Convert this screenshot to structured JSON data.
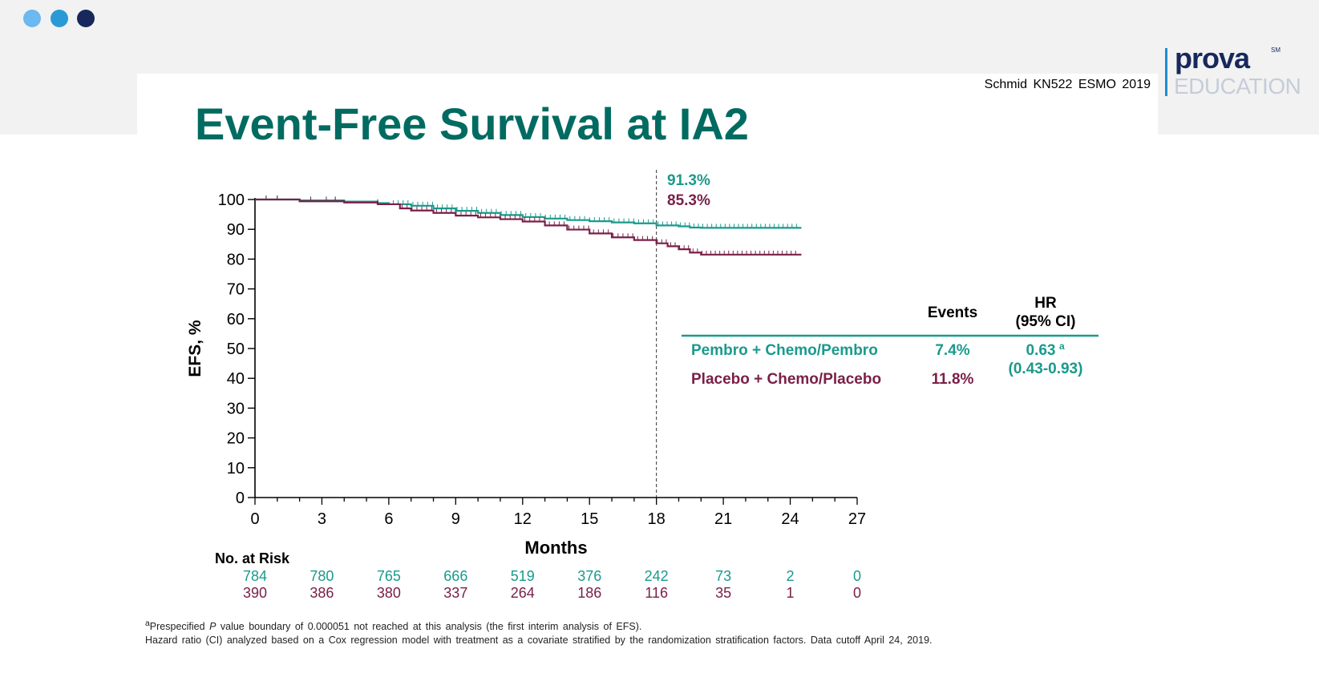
{
  "header": {
    "citation": "Schmid KN522 ESMO 2019",
    "logo_top": "prova",
    "logo_sm": "SM",
    "logo_bottom": "EDUCATION"
  },
  "slide": {
    "title": "Event-Free Survival at IA2"
  },
  "colors": {
    "teal": "#1a9a8c",
    "maroon": "#7a2048",
    "title": "#006b61",
    "dot_light": "#6cb8f0",
    "dot_mid": "#2a9ad6",
    "dot_dark": "#17285c"
  },
  "chart_data": {
    "type": "line",
    "step": true,
    "ylabel": "EFS, %",
    "xlabel": "Months",
    "x_ticks": [
      0,
      3,
      6,
      9,
      12,
      15,
      18,
      21,
      24,
      27
    ],
    "y_ticks": [
      0,
      10,
      20,
      30,
      40,
      50,
      60,
      70,
      80,
      90,
      100
    ],
    "xlim": [
      0,
      27
    ],
    "ylim": [
      0,
      100
    ],
    "reference_line_x": 18,
    "annotations": [
      {
        "text": "91.3%",
        "series": "Pembro + Chemo/Pembro"
      },
      {
        "text": "85.3%",
        "series": "Placebo + Chemo/Placebo"
      }
    ],
    "series": [
      {
        "name": "Pembro + Chemo/Pembro",
        "color": "#1a9a8c",
        "points": [
          [
            0,
            100
          ],
          [
            2,
            99.7
          ],
          [
            4,
            99.3
          ],
          [
            5.5,
            98.8
          ],
          [
            6,
            98.4
          ],
          [
            7,
            97.9
          ],
          [
            8,
            97.0
          ],
          [
            9,
            96.2
          ],
          [
            10,
            95.5
          ],
          [
            11,
            94.8
          ],
          [
            12,
            94.1
          ],
          [
            13,
            93.6
          ],
          [
            14,
            93.1
          ],
          [
            15,
            92.7
          ],
          [
            16,
            92.3
          ],
          [
            17,
            92.0
          ],
          [
            18,
            91.3
          ],
          [
            19,
            91.0
          ],
          [
            19.5,
            90.6
          ],
          [
            20,
            90.5
          ],
          [
            24.5,
            90.5
          ]
        ]
      },
      {
        "name": "Placebo + Chemo/Placebo",
        "color": "#7a2048",
        "points": [
          [
            0,
            100
          ],
          [
            2,
            99.4
          ],
          [
            4,
            99.0
          ],
          [
            5.5,
            98.4
          ],
          [
            6.5,
            97.0
          ],
          [
            7,
            96.3
          ],
          [
            8,
            95.5
          ],
          [
            9,
            94.6
          ],
          [
            10,
            94.0
          ],
          [
            11,
            93.4
          ],
          [
            12,
            92.6
          ],
          [
            13,
            91.3
          ],
          [
            14,
            89.9
          ],
          [
            15,
            88.6
          ],
          [
            16,
            87.3
          ],
          [
            17,
            86.4
          ],
          [
            18,
            85.3
          ],
          [
            18.5,
            84.3
          ],
          [
            19,
            83.3
          ],
          [
            19.5,
            82.2
          ],
          [
            20,
            81.5
          ],
          [
            24.5,
            81.5
          ]
        ]
      }
    ],
    "risk_table": {
      "title": "No. at Risk",
      "rows": [
        {
          "series": "Pembro + Chemo/Pembro",
          "values": [
            "784",
            "780",
            "765",
            "666",
            "519",
            "376",
            "242",
            "73",
            "2",
            "0"
          ]
        },
        {
          "series": "Placebo + Chemo/Placebo",
          "values": [
            "390",
            "386",
            "380",
            "337",
            "264",
            "186",
            "116",
            "35",
            "1",
            "0"
          ]
        }
      ]
    },
    "legend_table": {
      "headers": {
        "events": "Events",
        "hr_line1": "HR",
        "hr_line2": "(95% CI)"
      },
      "rows": [
        {
          "label": "Pembro + Chemo/Pembro",
          "events": "7.4%"
        },
        {
          "label": "Placebo + Chemo/Placebo",
          "events": "11.8%"
        }
      ],
      "hr_value": "0.63",
      "hr_superscript": "a",
      "hr_ci": "(0.43-0.93)"
    }
  },
  "footnotes": {
    "line1_sup": "a",
    "line1_pre": "Prespecified ",
    "line1_p": "P",
    "line1_post": " value boundary of 0.000051 not reached at this analysis (the first interim analysis of EFS).",
    "line2": "Hazard ratio (CI) analyzed based on a Cox regression model with treatment as a covariate stratified by the randomization stratification factors. Data cutoff April 24, 2019."
  }
}
